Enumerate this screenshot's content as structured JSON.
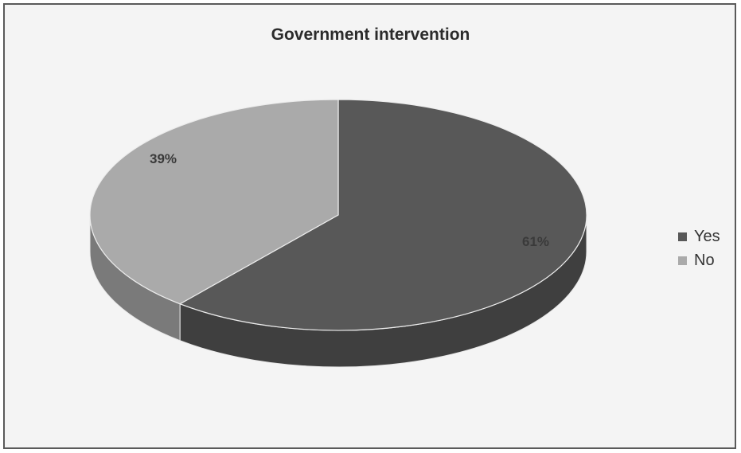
{
  "chart_data": {
    "type": "pie",
    "title": "Government intervention",
    "categories": [
      "Yes",
      "No"
    ],
    "values": [
      61,
      39
    ],
    "data_labels": [
      "61%",
      "39%"
    ],
    "colors": {
      "Yes": "#585858",
      "No": "#aaaaaa"
    },
    "legend": {
      "position": "right"
    }
  }
}
